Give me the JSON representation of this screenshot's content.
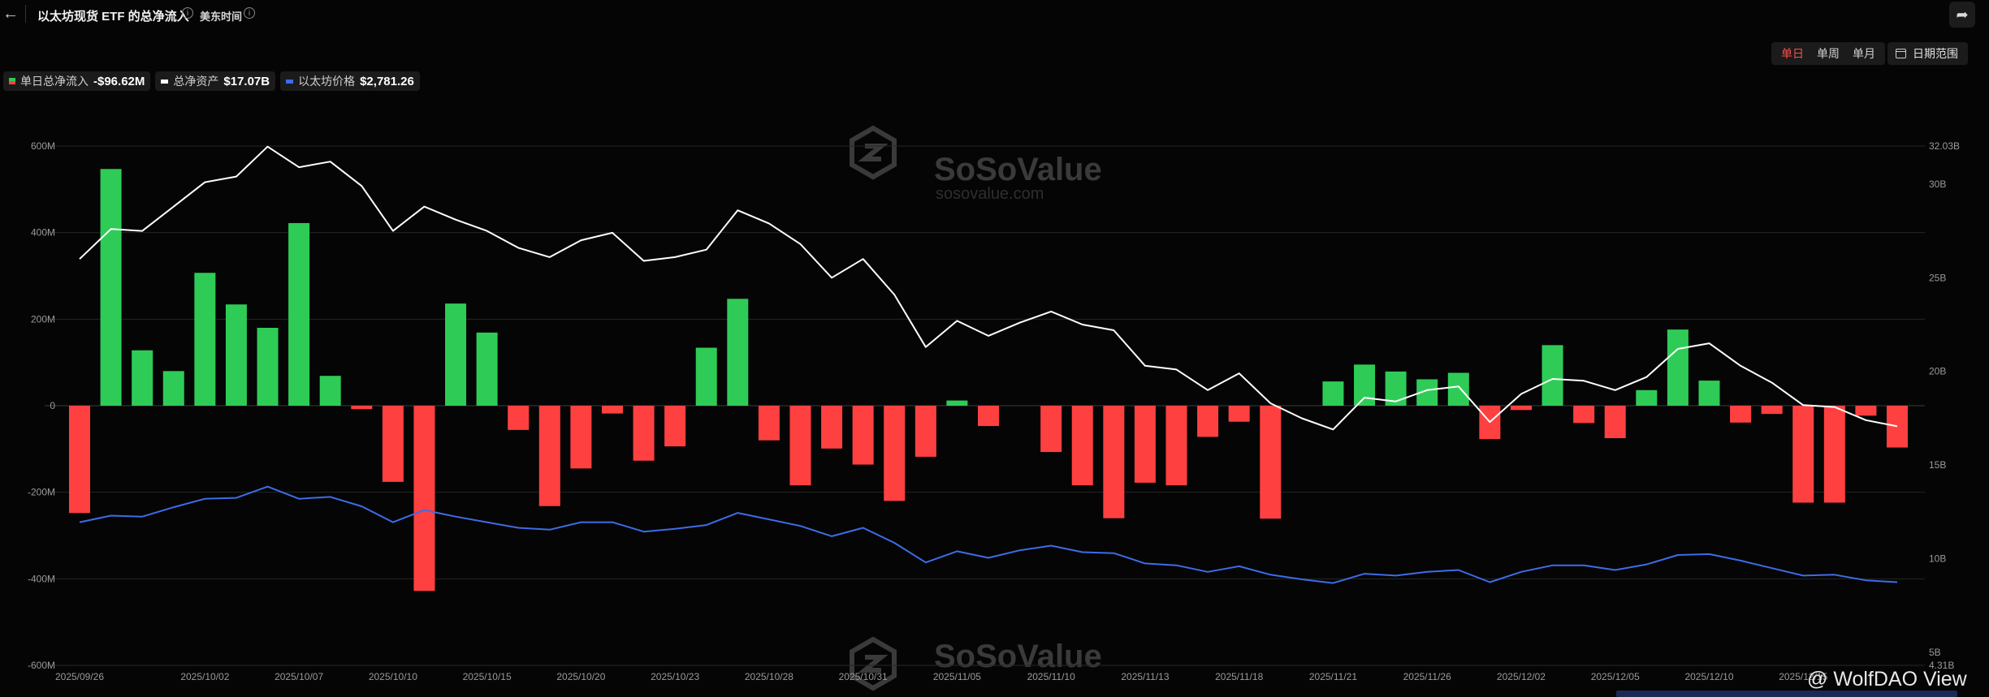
{
  "header": {
    "title": "以太坊现货 ETF 的总净流入",
    "timezone": "美东时间"
  },
  "controls": {
    "ranges": [
      "单日",
      "单周",
      "单月"
    ],
    "active_range": "单日",
    "date_range_label": "日期范围"
  },
  "legend": [
    {
      "name": "单日总净流入",
      "value": "-$96.62M",
      "swatch": "redgreen"
    },
    {
      "name": "总净资产",
      "value": "$17.07B",
      "swatch": "#ffffff"
    },
    {
      "name": "以太坊价格",
      "value": "$2,781.26",
      "swatch": "#3d6ce8"
    }
  ],
  "watermark": {
    "brand": "SoSoValue",
    "url": "sosovalue.com"
  },
  "credit": "@ WolfDAO View",
  "colors": {
    "inflow": "#2ecc56",
    "outflow": "#ff4040",
    "assets_line": "#ffffff",
    "price_line": "#3d6ce8",
    "background": "#050505"
  },
  "chart_data": {
    "type": "bar",
    "x": [
      "2025/09/26",
      "2025/09/29",
      "2025/09/30",
      "2025/10/01",
      "2025/10/02",
      "2025/10/03",
      "2025/10/06",
      "2025/10/07",
      "2025/10/08",
      "2025/10/09",
      "2025/10/10",
      "2025/10/13",
      "2025/10/14",
      "2025/10/15",
      "2025/10/16",
      "2025/10/17",
      "2025/10/20",
      "2025/10/21",
      "2025/10/22",
      "2025/10/23",
      "2025/10/24",
      "2025/10/27",
      "2025/10/28",
      "2025/10/29",
      "2025/10/30",
      "2025/10/31",
      "2025/11/03",
      "2025/11/04",
      "2025/11/05",
      "2025/11/06",
      "2025/11/07",
      "2025/11/10",
      "2025/11/11",
      "2025/11/12",
      "2025/11/13",
      "2025/11/14",
      "2025/11/17",
      "2025/11/18",
      "2025/11/19",
      "2025/11/20",
      "2025/11/21",
      "2025/11/24",
      "2025/11/25",
      "2025/11/26",
      "2025/11/28",
      "2025/12/01",
      "2025/12/02",
      "2025/12/03",
      "2025/12/04",
      "2025/12/05",
      "2025/12/08",
      "2025/12/09",
      "2025/12/10",
      "2025/12/11",
      "2025/12/12",
      "2025/12/15",
      "2025/12/16",
      "2025/12/17",
      "2025/12/18"
    ],
    "x_tick_labels": [
      "2025/09/26",
      "2025/10/02",
      "2025/10/07",
      "2025/10/10",
      "2025/10/15",
      "2025/10/20",
      "2025/10/23",
      "2025/10/28",
      "2025/10/31",
      "2025/11/05",
      "2025/11/10",
      "2025/11/13",
      "2025/11/18",
      "2025/11/21",
      "2025/11/26",
      "2025/12/02",
      "2025/12/05",
      "2025/12/10",
      "2025/12/15"
    ],
    "series": [
      {
        "name": "单日总净流入",
        "axis": "left",
        "kind": "bar",
        "values": [
          -248,
          547,
          128,
          80,
          307,
          234,
          180,
          422,
          69,
          -8,
          -176,
          -428,
          236,
          169,
          -56,
          -232,
          -145,
          -18,
          -127,
          -94,
          134,
          247,
          -80,
          -184,
          -99,
          -136,
          -220,
          -118,
          12,
          -47,
          0,
          -107,
          -184,
          -260,
          -178,
          -184,
          -72,
          -37,
          -261,
          0,
          56,
          95,
          79,
          61,
          76,
          -77,
          -10,
          140,
          -40,
          -75,
          36,
          176,
          58,
          -39,
          -19,
          -224,
          -224,
          -23,
          -96.62
        ]
      },
      {
        "name": "总净资产",
        "axis": "right",
        "kind": "line",
        "values": [
          26.0,
          27.6,
          27.5,
          28.8,
          30.1,
          30.4,
          32.0,
          30.9,
          31.2,
          29.9,
          27.5,
          28.8,
          28.1,
          27.5,
          26.6,
          26.1,
          27.0,
          27.4,
          25.9,
          26.1,
          26.5,
          28.6,
          27.9,
          26.8,
          25.0,
          26.0,
          24.1,
          21.3,
          22.7,
          21.9,
          22.6,
          23.2,
          22.5,
          22.2,
          20.3,
          20.1,
          19.0,
          19.9,
          18.3,
          17.5,
          16.9,
          18.6,
          18.4,
          19.0,
          19.2,
          17.3,
          18.8,
          19.6,
          19.5,
          19.0,
          19.7,
          21.2,
          21.5,
          20.3,
          19.4,
          18.2,
          18.1,
          17.4,
          17.07
        ]
      },
      {
        "name": "以太坊价格",
        "axis": "right",
        "kind": "line",
        "values": [
          11.95,
          12.3,
          12.25,
          12.75,
          13.2,
          13.25,
          13.85,
          13.2,
          13.3,
          12.8,
          11.95,
          12.6,
          12.25,
          11.95,
          11.65,
          11.55,
          11.95,
          11.95,
          11.45,
          11.6,
          11.8,
          12.45,
          12.1,
          11.75,
          11.2,
          11.65,
          10.85,
          9.8,
          10.4,
          10.05,
          10.45,
          10.7,
          10.35,
          10.3,
          9.75,
          9.65,
          9.3,
          9.6,
          9.15,
          8.9,
          8.7,
          9.2,
          9.1,
          9.3,
          9.4,
          8.75,
          9.3,
          9.65,
          9.65,
          9.4,
          9.7,
          10.2,
          10.25,
          9.9,
          9.5,
          9.1,
          9.15,
          8.85,
          8.75
        ]
      }
    ],
    "y_left": {
      "ticks": [
        "600M",
        "400M",
        "200M",
        "0",
        "-200M",
        "-400M",
        "-600M"
      ],
      "range": [
        -600,
        600
      ],
      "unit": "M"
    },
    "y_right": {
      "ticks": [
        "32.03B",
        "30B",
        "25B",
        "20B",
        "15B",
        "10B",
        "5B",
        "4.31B"
      ],
      "range": [
        4.31,
        32.03
      ],
      "unit": "B"
    },
    "grid": true,
    "legend_position": "top-left"
  }
}
